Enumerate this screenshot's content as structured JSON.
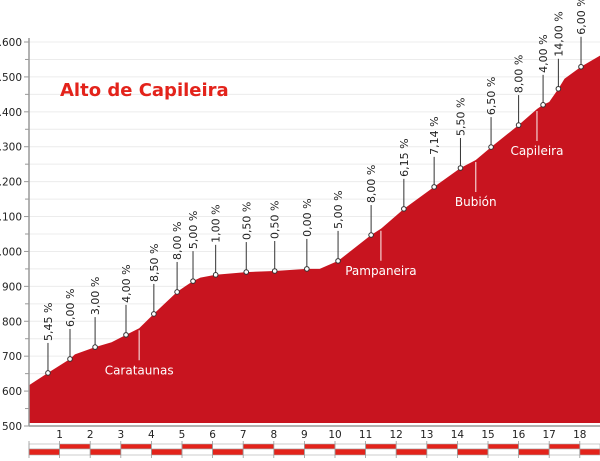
{
  "chart_data": {
    "type": "area",
    "title": "Alto de Capileira",
    "xlabel": "",
    "ylabel": "",
    "ylim": [
      500,
      1600
    ],
    "xlim": [
      0,
      18.7
    ],
    "grid": true,
    "colors": {
      "fill": "#c8141f",
      "title": "#e3231b",
      "highlight": "#e3231b",
      "bar": "#e3231b"
    },
    "y_ticks": [
      "500",
      "600",
      "700",
      "800",
      "900",
      "1.000",
      "1.100",
      "1.200",
      "1.300",
      "1.400",
      "1.500",
      "1.600"
    ],
    "y_tick_values": [
      500,
      600,
      700,
      800,
      900,
      1000,
      1100,
      1200,
      1300,
      1400,
      1500,
      1600
    ],
    "x_ticks": [
      "1",
      "2",
      "3",
      "4",
      "5",
      "6",
      "7",
      "8",
      "9",
      "10",
      "11",
      "12",
      "13",
      "14",
      "15",
      "16",
      "17",
      "18"
    ],
    "profile": {
      "km": [
        0,
        0.62,
        1.34,
        1.5,
        2.16,
        2.7,
        3.17,
        3.6,
        4.08,
        4.84,
        5.1,
        5.36,
        5.6,
        6.1,
        7.1,
        8.03,
        9.08,
        9.5,
        10.1,
        11.18,
        11.5,
        12.25,
        13.24,
        14.1,
        14.6,
        15.1,
        16.0,
        16.6,
        16.8,
        17.0,
        17.3,
        17.5,
        18.04,
        18.7
      ],
      "elev": [
        617,
        652,
        692,
        705,
        726,
        740,
        761,
        780,
        821,
        884,
        900,
        915,
        925,
        933,
        941,
        944,
        950,
        950,
        973,
        1047,
        1065,
        1122,
        1185,
        1239,
        1262,
        1299,
        1362,
        1408,
        1420,
        1428,
        1466,
        1495,
        1529,
        1563
      ]
    },
    "gradients": [
      {
        "km": 0.62,
        "elev": 652,
        "label": "5,45 %"
      },
      {
        "km": 1.34,
        "elev": 692,
        "label": "6,00 %"
      },
      {
        "km": 2.16,
        "elev": 726,
        "label": "3,00 %"
      },
      {
        "km": 3.17,
        "elev": 761,
        "label": "4,00 %"
      },
      {
        "km": 4.08,
        "elev": 821,
        "label": "8,50 %"
      },
      {
        "km": 4.84,
        "elev": 884,
        "label": "8,00 %"
      },
      {
        "km": 5.36,
        "elev": 915,
        "label": "5,00 %"
      },
      {
        "km": 6.1,
        "elev": 933,
        "label": "1,00 %"
      },
      {
        "km": 7.1,
        "elev": 941,
        "label": "0,50 %"
      },
      {
        "km": 8.03,
        "elev": 944,
        "label": "0,50 %"
      },
      {
        "km": 9.08,
        "elev": 950,
        "label": "0,00 %"
      },
      {
        "km": 10.1,
        "elev": 973,
        "label": "5,00 %"
      },
      {
        "km": 11.18,
        "elev": 1047,
        "label": "8,00 %"
      },
      {
        "km": 12.25,
        "elev": 1122,
        "label": "6,15 %"
      },
      {
        "km": 13.24,
        "elev": 1185,
        "label": "7,14 %"
      },
      {
        "km": 14.1,
        "elev": 1239,
        "label": "5,50 %"
      },
      {
        "km": 15.1,
        "elev": 1299,
        "label": "6,50 %"
      },
      {
        "km": 16.0,
        "elev": 1362,
        "label": "8,00 %"
      },
      {
        "km": 16.8,
        "elev": 1420,
        "label": "4,00 %"
      },
      {
        "km": 17.3,
        "elev": 1466,
        "label": "14,00 %",
        "highlight": true
      },
      {
        "km": 18.04,
        "elev": 1529,
        "label": "6,00 %"
      }
    ],
    "places": [
      {
        "name": "Carataunas",
        "km": 3.6,
        "elev": 780
      },
      {
        "name": "Pampaneira",
        "km": 11.5,
        "elev": 1065
      },
      {
        "name": "Bubión",
        "km": 14.6,
        "elev": 1262
      },
      {
        "name": "Capileira",
        "km": 16.6,
        "elev": 1408
      }
    ]
  }
}
